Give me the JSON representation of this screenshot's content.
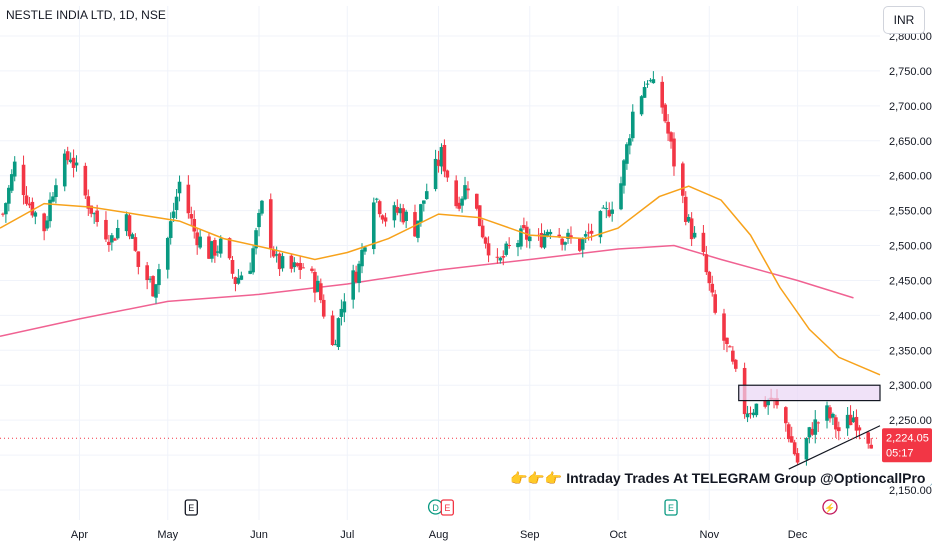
{
  "header": {
    "title": "NESTLE INDIA LTD, 1D, NSE",
    "currency": "INR"
  },
  "price_tag": {
    "value": "2,224.05",
    "countdown": "05:17",
    "color": "#f23645"
  },
  "annotation": {
    "emoji": "👉👉👉",
    "text": "Intraday Trades At TELEGRAM Group @OptioncallPro",
    "pin": "📌"
  },
  "colors": {
    "up": "#089981",
    "down": "#f23645",
    "ma_short": "#f7a21b",
    "ma_long": "#f06292",
    "zone": "#e9d5f5"
  },
  "events": [
    {
      "label": "E",
      "x": "2023-05-09",
      "kind": "earnings"
    },
    {
      "label": "D",
      "x": "2023-07-31",
      "kind": "dividend"
    },
    {
      "label": "E",
      "x": "2023-08-04",
      "kind": "earnings-red"
    },
    {
      "label": "E",
      "x": "2023-10-19",
      "kind": "earnings-green"
    },
    {
      "label": "⚡",
      "x": "2023-12-12",
      "kind": "flash"
    }
  ],
  "chart_data": {
    "type": "candlestick",
    "x_range": [
      "2023-03-05",
      "2023-12-29"
    ],
    "ylim": [
      2150,
      2800
    ],
    "y_ticks": [
      "2,800.00",
      "2,750.00",
      "2,700.00",
      "2,650.00",
      "2,600.00",
      "2,550.00",
      "2,500.00",
      "2,450.00",
      "2,400.00",
      "2,350.00",
      "2,300.00",
      "2,250.00",
      "2,200.00",
      "2,150.00"
    ],
    "x_ticks": [
      {
        "label": "Apr",
        "date": "2023-04-01"
      },
      {
        "label": "May",
        "date": "2023-05-01"
      },
      {
        "label": "Jun",
        "date": "2023-06-01"
      },
      {
        "label": "Jul",
        "date": "2023-07-01"
      },
      {
        "label": "Aug",
        "date": "2023-08-01"
      },
      {
        "label": "Sep",
        "date": "2023-09-01"
      },
      {
        "label": "Oct",
        "date": "2023-10-01"
      },
      {
        "label": "Nov",
        "date": "2023-11-01"
      },
      {
        "label": "Dec",
        "date": "2023-12-01"
      }
    ],
    "last_price": 2224.05,
    "close_path": [
      [
        "2023-03-06",
        2545
      ],
      [
        "2023-03-10",
        2615
      ],
      [
        "2023-03-15",
        2560
      ],
      [
        "2023-03-20",
        2525
      ],
      [
        "2023-03-24",
        2600
      ],
      [
        "2023-03-29",
        2630
      ],
      [
        "2023-04-03",
        2570
      ],
      [
        "2023-04-07",
        2535
      ],
      [
        "2023-04-12",
        2510
      ],
      [
        "2023-04-17",
        2545
      ],
      [
        "2023-04-21",
        2470
      ],
      [
        "2023-04-26",
        2440
      ],
      [
        "2023-05-01",
        2510
      ],
      [
        "2023-05-05",
        2590
      ],
      [
        "2023-05-10",
        2520
      ],
      [
        "2023-05-15",
        2490
      ],
      [
        "2023-05-19",
        2500
      ],
      [
        "2023-05-24",
        2450
      ],
      [
        "2023-05-29",
        2475
      ],
      [
        "2023-06-02",
        2555
      ],
      [
        "2023-06-07",
        2475
      ],
      [
        "2023-06-12",
        2465
      ],
      [
        "2023-06-16",
        2470
      ],
      [
        "2023-06-21",
        2440
      ],
      [
        "2023-06-26",
        2355
      ],
      [
        "2023-06-30",
        2430
      ],
      [
        "2023-07-05",
        2470
      ],
      [
        "2023-07-10",
        2575
      ],
      [
        "2023-07-14",
        2540
      ],
      [
        "2023-07-19",
        2550
      ],
      [
        "2023-07-24",
        2525
      ],
      [
        "2023-07-28",
        2580
      ],
      [
        "2023-08-02",
        2630
      ],
      [
        "2023-08-07",
        2560
      ],
      [
        "2023-08-11",
        2590
      ],
      [
        "2023-08-16",
        2520
      ],
      [
        "2023-08-21",
        2470
      ],
      [
        "2023-08-25",
        2495
      ],
      [
        "2023-08-30",
        2515
      ],
      [
        "2023-09-04",
        2505
      ],
      [
        "2023-09-08",
        2530
      ],
      [
        "2023-09-13",
        2510
      ],
      [
        "2023-09-18",
        2500
      ],
      [
        "2023-09-22",
        2520
      ],
      [
        "2023-09-27",
        2545
      ],
      [
        "2023-10-02",
        2590
      ],
      [
        "2023-10-06",
        2690
      ],
      [
        "2023-10-11",
        2740
      ],
      [
        "2023-10-16",
        2700
      ],
      [
        "2023-10-20",
        2620
      ],
      [
        "2023-10-25",
        2530
      ],
      [
        "2023-10-30",
        2480
      ],
      [
        "2023-11-03",
        2400
      ],
      [
        "2023-11-08",
        2340
      ],
      [
        "2023-11-13",
        2265
      ],
      [
        "2023-11-17",
        2270
      ],
      [
        "2023-11-22",
        2280
      ],
      [
        "2023-11-27",
        2245
      ],
      [
        "2023-12-01",
        2190
      ],
      [
        "2023-12-06",
        2240
      ],
      [
        "2023-12-11",
        2260
      ],
      [
        "2023-12-15",
        2235
      ],
      [
        "2023-12-20",
        2255
      ],
      [
        "2023-12-26",
        2224
      ]
    ],
    "ma_short": [
      [
        "2023-03-05",
        2525
      ],
      [
        "2023-03-20",
        2560
      ],
      [
        "2023-04-05",
        2555
      ],
      [
        "2023-04-20",
        2545
      ],
      [
        "2023-05-05",
        2535
      ],
      [
        "2023-05-20",
        2510
      ],
      [
        "2023-06-05",
        2495
      ],
      [
        "2023-06-20",
        2480
      ],
      [
        "2023-07-01",
        2490
      ],
      [
        "2023-07-15",
        2510
      ],
      [
        "2023-08-01",
        2545
      ],
      [
        "2023-08-15",
        2540
      ],
      [
        "2023-09-01",
        2515
      ],
      [
        "2023-09-20",
        2510
      ],
      [
        "2023-10-01",
        2525
      ],
      [
        "2023-10-15",
        2570
      ],
      [
        "2023-10-25",
        2585
      ],
      [
        "2023-11-05",
        2565
      ],
      [
        "2023-11-15",
        2515
      ],
      [
        "2023-11-25",
        2440
      ],
      [
        "2023-12-05",
        2380
      ],
      [
        "2023-12-15",
        2340
      ],
      [
        "2023-12-29",
        2315
      ]
    ],
    "ma_long": [
      [
        "2023-03-05",
        2370
      ],
      [
        "2023-04-01",
        2395
      ],
      [
        "2023-05-01",
        2420
      ],
      [
        "2023-06-01",
        2430
      ],
      [
        "2023-07-01",
        2445
      ],
      [
        "2023-08-01",
        2465
      ],
      [
        "2023-09-01",
        2480
      ],
      [
        "2023-10-01",
        2495
      ],
      [
        "2023-10-20",
        2500
      ],
      [
        "2023-11-05",
        2480
      ],
      [
        "2023-12-01",
        2450
      ],
      [
        "2023-12-20",
        2425
      ]
    ],
    "zone": {
      "from": "2023-11-11",
      "to": "2023-12-29",
      "low": 2278,
      "high": 2300
    },
    "trendline": [
      [
        "2023-11-28",
        2180
      ],
      [
        "2023-12-29",
        2242
      ]
    ],
    "last_price_line": 2224.05
  }
}
